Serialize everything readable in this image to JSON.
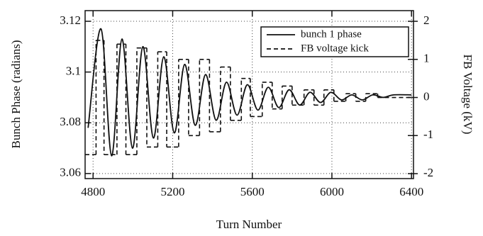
{
  "chart_data": {
    "type": "line",
    "x_label": "Turn Number",
    "y_label": "Bunch Phase (radians)",
    "y2_label": "FB Voltage (kV)",
    "xlim": [
      4760,
      6410
    ],
    "xticks": [
      4800,
      5200,
      5600,
      6000,
      6400
    ],
    "ylim": [
      3.058,
      3.1242
    ],
    "yticks": [
      3.06,
      3.08,
      3.1,
      3.12
    ],
    "y2lim": [
      -2.13,
      2.28
    ],
    "y2ticks": [
      -2,
      -1,
      0,
      1,
      2
    ],
    "grid": true,
    "legend": "upper right",
    "series": [
      {
        "name": "bunch 1 phase",
        "color": "#111111",
        "style": "solid",
        "x": [
          4775,
          4840,
          4893,
          4945,
          4998,
          5050,
          5103,
          5155,
          5208,
          5260,
          5313,
          5365,
          5418,
          5470,
          5523,
          5575,
          5628,
          5680,
          5733,
          5785,
          5838,
          5890,
          5943,
          5995,
          6048,
          6100,
          6153,
          6205,
          6258,
          6310,
          6400
        ],
        "values": [
          3.078,
          3.117,
          3.067,
          3.113,
          3.07,
          3.11,
          3.074,
          3.106,
          3.076,
          3.103,
          3.079,
          3.099,
          3.081,
          3.096,
          3.083,
          3.095,
          3.085,
          3.094,
          3.086,
          3.093,
          3.087,
          3.092,
          3.088,
          3.092,
          3.089,
          3.091,
          3.089,
          3.091,
          3.09,
          3.091,
          3.091
        ]
      },
      {
        "name": "FB voltage kick",
        "color": "#111111",
        "style": "dashed",
        "axis": "y2",
        "step": true,
        "x": [
          4760,
          4815,
          4855,
          4920,
          4965,
          5020,
          5070,
          5125,
          5170,
          5230,
          5280,
          5335,
          5385,
          5440,
          5490,
          5545,
          5590,
          5650,
          5700,
          5750,
          5800,
          5860,
          5910,
          5960,
          6010,
          6070,
          6120,
          6170,
          6230,
          6400
        ],
        "values": [
          -1.5,
          1.5,
          -1.5,
          1.4,
          -1.5,
          1.3,
          -1.3,
          1.2,
          -1.3,
          1.0,
          -1.0,
          1.0,
          -0.9,
          0.8,
          -0.6,
          0.5,
          -0.5,
          0.4,
          -0.3,
          0.3,
          -0.2,
          0.2,
          -0.2,
          0.2,
          -0.1,
          0.1,
          -0.1,
          0.1,
          0,
          0
        ]
      }
    ]
  }
}
